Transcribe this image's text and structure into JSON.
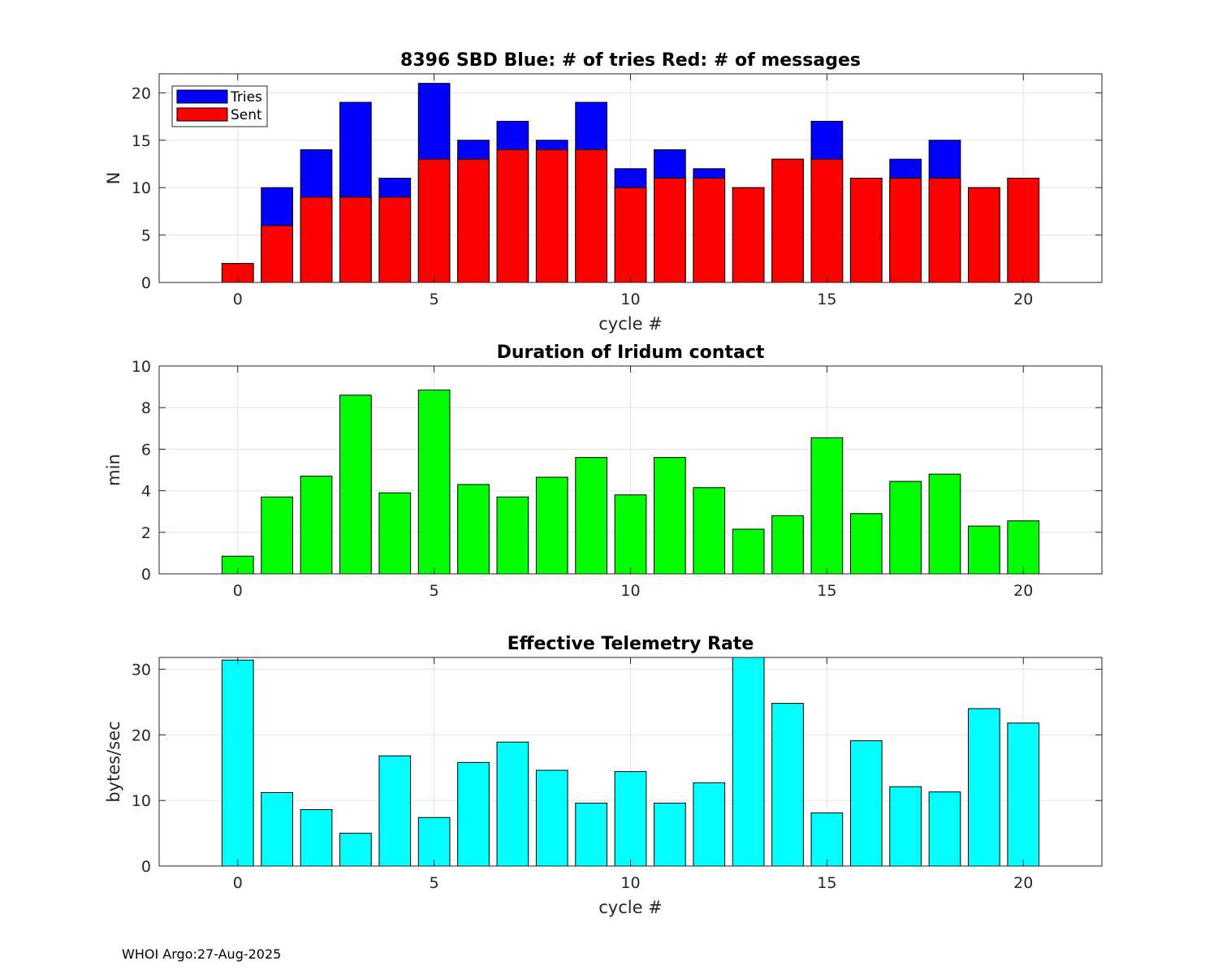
{
  "footer": "WHOI Argo:27-Aug-2025",
  "chart_data": [
    {
      "type": "bar",
      "stacked_overlay": true,
      "title": "8396 SBD  Blue: # of tries   Red: # of messages",
      "xlabel": "cycle #",
      "ylabel": "N",
      "x": [
        0,
        1,
        2,
        3,
        4,
        5,
        6,
        7,
        8,
        9,
        10,
        11,
        12,
        13,
        14,
        15,
        16,
        17,
        18,
        19,
        20
      ],
      "xlim": [
        -2,
        22
      ],
      "ylim": [
        0,
        22
      ],
      "xticks": [
        0,
        5,
        10,
        15,
        20
      ],
      "yticks": [
        0,
        5,
        10,
        15,
        20
      ],
      "grid": true,
      "legend": {
        "position": "top-left",
        "entries": [
          "Tries",
          "Sent"
        ]
      },
      "series": [
        {
          "name": "Tries",
          "color": "#0000ff",
          "values": [
            2,
            10,
            14,
            19,
            11,
            21,
            15,
            17,
            15,
            19,
            12,
            14,
            12,
            10,
            13,
            17,
            11,
            13,
            15,
            10,
            11
          ]
        },
        {
          "name": "Sent",
          "color": "#ff0000",
          "values": [
            2,
            6,
            9,
            9,
            9,
            13,
            13,
            14,
            14,
            14,
            10,
            11,
            11,
            10,
            13,
            13,
            11,
            11,
            11,
            10,
            11
          ]
        }
      ]
    },
    {
      "type": "bar",
      "title": "Duration of Iridum contact",
      "xlabel": "",
      "ylabel": "min",
      "x": [
        0,
        1,
        2,
        3,
        4,
        5,
        6,
        7,
        8,
        9,
        10,
        11,
        12,
        13,
        14,
        15,
        16,
        17,
        18,
        19,
        20
      ],
      "xlim": [
        -2,
        22
      ],
      "ylim": [
        0,
        10
      ],
      "xticks": [
        0,
        5,
        10,
        15,
        20
      ],
      "yticks": [
        0,
        2,
        4,
        6,
        8,
        10
      ],
      "grid": true,
      "series": [
        {
          "name": "Duration",
          "color": "#00ff00",
          "values": [
            0.85,
            3.7,
            4.7,
            8.6,
            3.9,
            8.85,
            4.3,
            3.7,
            4.65,
            5.6,
            3.8,
            5.6,
            4.15,
            2.15,
            2.8,
            6.55,
            2.9,
            4.45,
            4.8,
            2.3,
            2.55
          ]
        }
      ]
    },
    {
      "type": "bar",
      "title": "Effective Telemetry Rate",
      "xlabel": "cycle #",
      "ylabel": "bytes/sec",
      "x": [
        0,
        1,
        2,
        3,
        4,
        5,
        6,
        7,
        8,
        9,
        10,
        11,
        12,
        13,
        14,
        15,
        16,
        17,
        18,
        19,
        20
      ],
      "xlim": [
        -2,
        22
      ],
      "ylim": [
        0,
        31.8
      ],
      "xticks": [
        0,
        5,
        10,
        15,
        20
      ],
      "yticks": [
        0,
        10,
        20,
        30
      ],
      "grid": true,
      "series": [
        {
          "name": "Rate",
          "color": "#00ffff",
          "values": [
            31.4,
            11.2,
            8.6,
            5.0,
            16.8,
            7.4,
            15.8,
            18.9,
            14.6,
            9.6,
            14.4,
            9.6,
            12.7,
            31.8,
            24.8,
            8.1,
            19.1,
            12.1,
            11.3,
            24.0,
            21.8
          ]
        }
      ]
    }
  ]
}
